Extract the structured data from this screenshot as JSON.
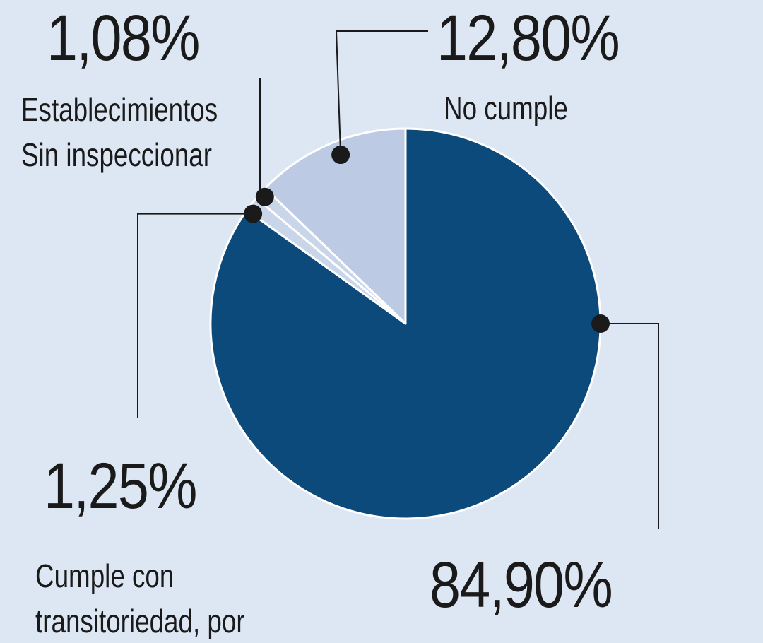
{
  "chart_data": {
    "type": "pie",
    "slices": [
      {
        "value_label": "84,90%",
        "value": 84.9,
        "label_lines": [],
        "color": "#0b4a7a"
      },
      {
        "value_label": "1,25%",
        "value": 1.25,
        "label_lines": [
          "Cumple con",
          "transitoriedad, por"
        ],
        "color": "#c9d6ea"
      },
      {
        "value_label": "1,08%",
        "value": 1.08,
        "label_lines": [
          "Establecimientos",
          "Sin inspeccionar"
        ],
        "color": "#c9d6ea"
      },
      {
        "value_label": "12,80%",
        "value": 12.8,
        "label_lines": [
          "No cumple"
        ],
        "color": "#bccbe3"
      }
    ],
    "start_angle_deg": 0,
    "direction": "clockwise",
    "colors": {
      "background": "#dde7f3",
      "main": "#0b4a7a",
      "light": "#bccbe3",
      "separator": "#ffffff",
      "leader": "#1a1a1a"
    }
  }
}
